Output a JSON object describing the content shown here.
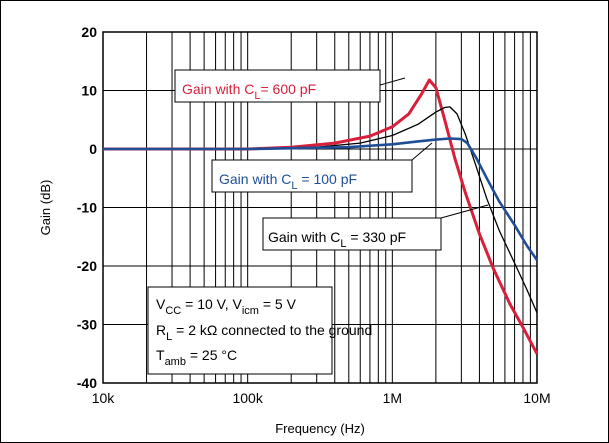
{
  "chart_data": {
    "type": "line",
    "x_scale": "log",
    "xlim": [
      10000,
      10000000
    ],
    "ylim": [
      -40,
      20
    ],
    "xlabel": "Frequency  (Hz)",
    "ylabel": "Gain (dB)",
    "x_ticks": [
      "10k",
      "100k",
      "1M",
      "10M"
    ],
    "x_tick_values": [
      10000,
      100000,
      1000000,
      10000000
    ],
    "y_ticks": [
      "20",
      "10",
      "0",
      "-10",
      "-20",
      "-30",
      "-40"
    ],
    "y_tick_values": [
      20,
      10,
      0,
      -10,
      -20,
      -30,
      -40
    ],
    "grid": true,
    "series": [
      {
        "name": "Gain with CL = 600 pF",
        "label_main": "Gain with C",
        "label_sub": "L",
        "label_tail": "= 600 pF",
        "color": "#d8203c",
        "x": [
          10000,
          100000,
          200000,
          400000,
          700000,
          1000000,
          1300000,
          1600000,
          1800000,
          2000000,
          2300000,
          2700000,
          3200000,
          4000000,
          5000000,
          6500000,
          8000000,
          10000000
        ],
        "y": [
          0,
          0,
          0.3,
          1,
          2.2,
          3.8,
          6,
          9.5,
          11.8,
          10.5,
          5,
          -1.5,
          -7.5,
          -14.5,
          -20.5,
          -26.5,
          -30.5,
          -35
        ]
      },
      {
        "name": "Gain with CL = 330 pF",
        "label_main": "Gain with C",
        "label_sub": "L",
        "label_tail": " = 330 pF",
        "color": "#000000",
        "x": [
          10000,
          100000,
          300000,
          600000,
          1000000,
          1500000,
          2000000,
          2300000,
          2500000,
          2800000,
          3200000,
          3800000,
          4500000,
          5500000,
          7000000,
          8500000,
          10000000
        ],
        "y": [
          0,
          0,
          0.3,
          1,
          2.3,
          4.2,
          6.3,
          7.1,
          7.2,
          6,
          2.5,
          -3,
          -8.5,
          -14,
          -19.5,
          -24,
          -28
        ]
      },
      {
        "name": "Gain with CL = 100 pF",
        "label_main": "Gain with C",
        "label_sub": "L",
        "label_tail": " = 100 pF",
        "color": "#1f4e96",
        "x": [
          10000,
          100000,
          500000,
          1000000,
          1500000,
          2000000,
          2500000,
          3000000,
          3300000,
          3800000,
          4500000,
          5500000,
          7000000,
          8500000,
          10000000
        ],
        "y": [
          0,
          0,
          0.3,
          0.8,
          1.3,
          1.6,
          1.8,
          1.7,
          1,
          -1.5,
          -5,
          -9,
          -13,
          -16.5,
          -19
        ]
      }
    ],
    "conditions": [
      {
        "parts": [
          [
            "V",
            ""
          ],
          [
            "CC",
            "sub"
          ],
          [
            " = 10 V, V",
            ""
          ],
          [
            "icm",
            "sub"
          ],
          [
            " = 5 V",
            ""
          ]
        ]
      },
      {
        "parts": [
          [
            "R",
            ""
          ],
          [
            "L",
            "sub"
          ],
          [
            " = 2 kΩ  connected to the ground",
            ""
          ]
        ]
      },
      {
        "parts": [
          [
            "T",
            ""
          ],
          [
            "amb",
            "sub"
          ],
          [
            " = 25 °C",
            ""
          ]
        ]
      }
    ]
  }
}
